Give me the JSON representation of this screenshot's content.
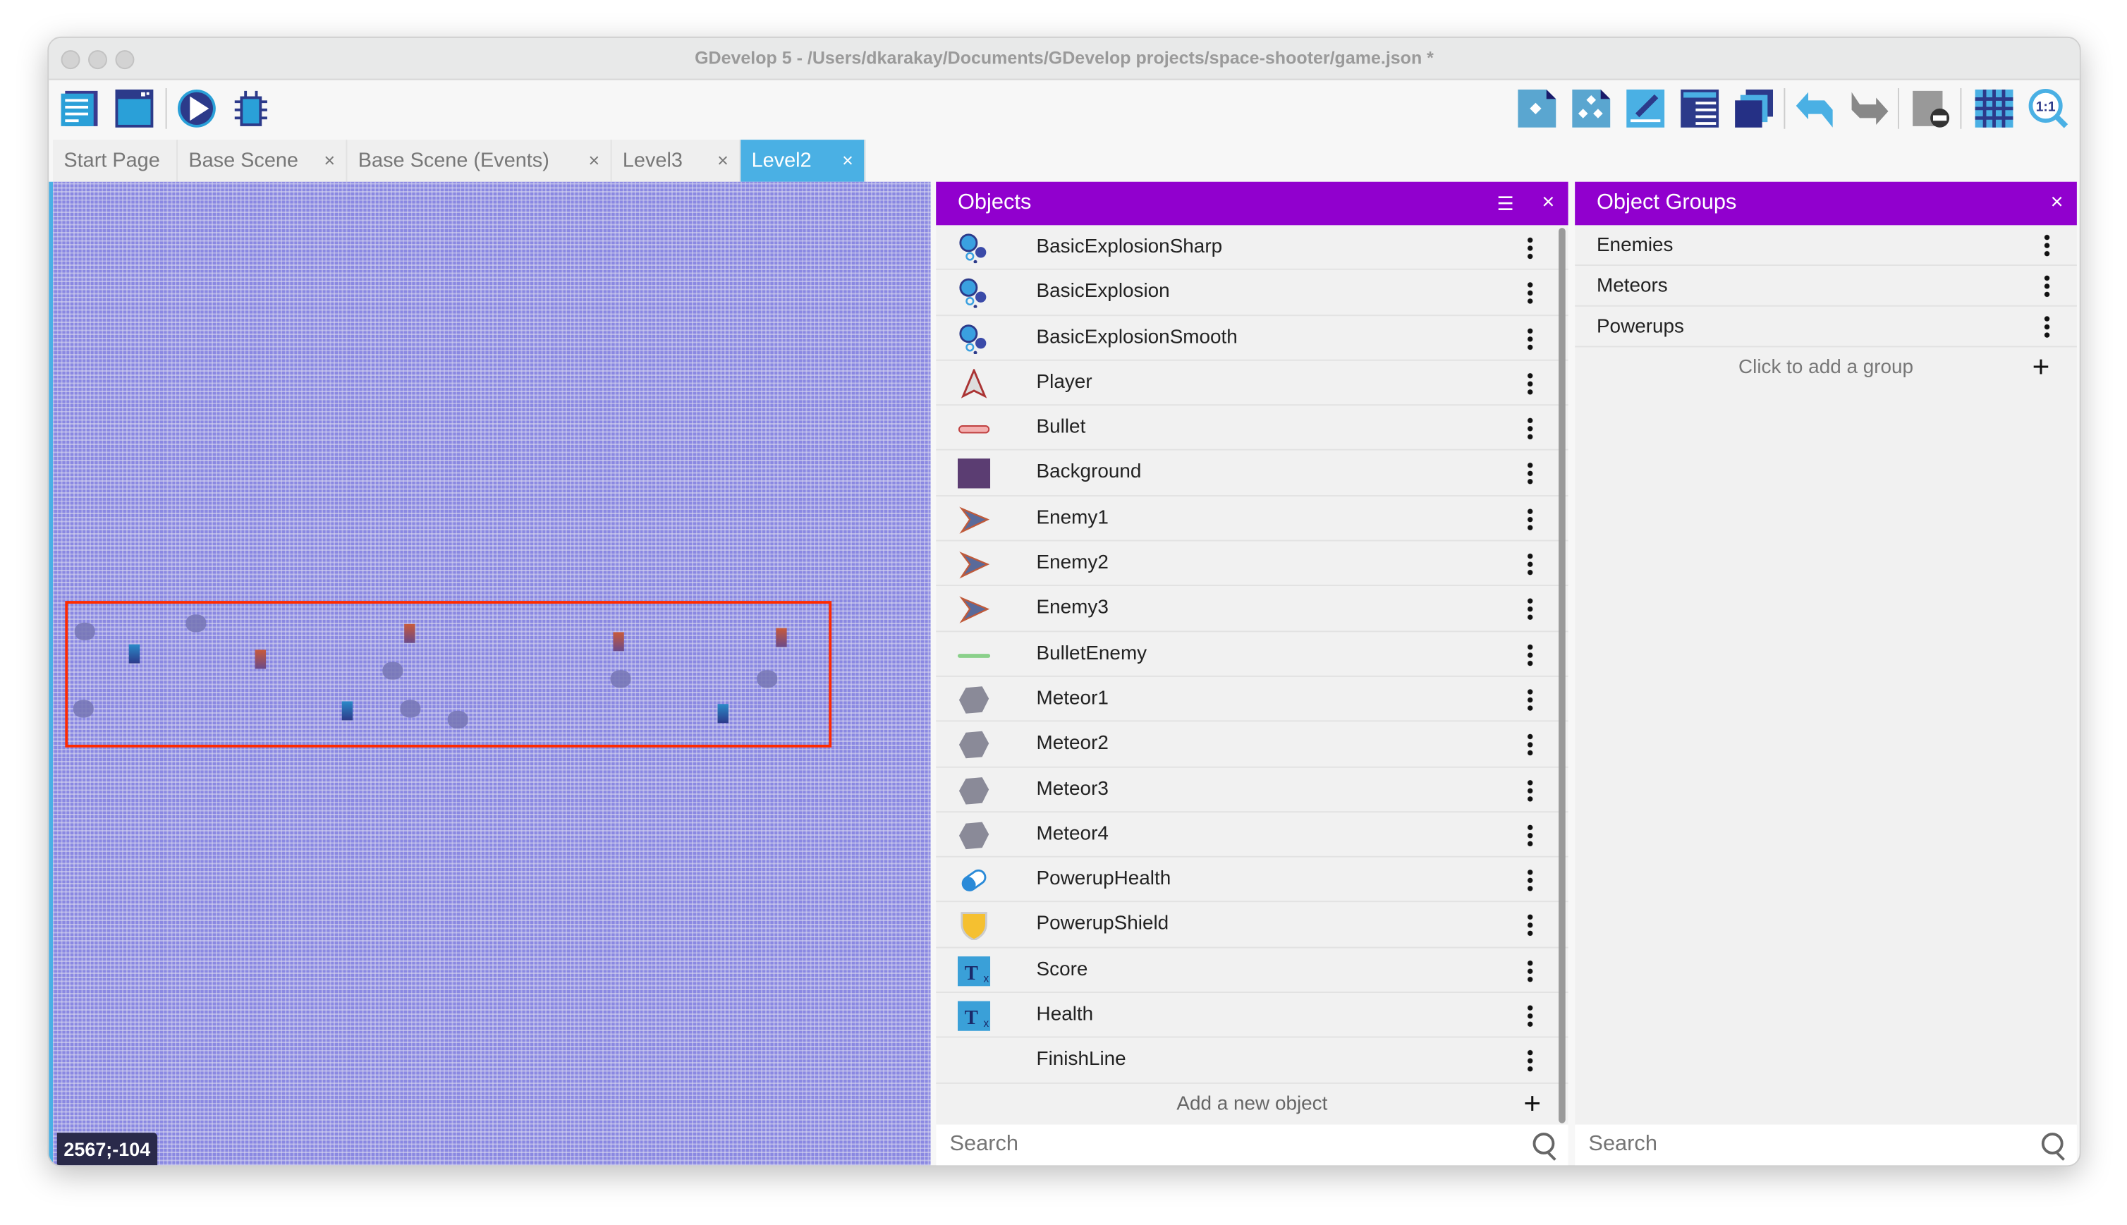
{
  "window": {
    "title": "GDevelop 5 - /Users/dkarakay/Documents/GDevelop projects/space-shooter/game.json *"
  },
  "toolbar": {
    "left": [
      "project-manager-icon",
      "scene-window-icon",
      "preview-play-icon",
      "debugger-icon"
    ],
    "right": [
      "add-instance-icon",
      "instances-list-icon",
      "properties-edit-icon",
      "layers-list-icon",
      "layers-stack-icon",
      "undo-icon",
      "redo-icon",
      "delete-icon",
      "grid-icon",
      "zoom-reset-icon"
    ]
  },
  "tabs": [
    {
      "label": "Start Page",
      "closable": false
    },
    {
      "label": "Base Scene",
      "closable": true
    },
    {
      "label": "Base Scene (Events)",
      "closable": true
    },
    {
      "label": "Level3",
      "closable": true
    },
    {
      "label": "Level2",
      "closable": true,
      "active": true
    }
  ],
  "tab_close": "×",
  "canvas": {
    "coords": "2567;-104",
    "background": "#8a88e2",
    "selection_color": "#ff2a00"
  },
  "objects": {
    "title": "Objects",
    "close": "×",
    "items": [
      {
        "name": "BasicExplosionSharp",
        "icon": "particle"
      },
      {
        "name": "BasicExplosion",
        "icon": "particle"
      },
      {
        "name": "BasicExplosionSmooth",
        "icon": "particle"
      },
      {
        "name": "Player",
        "icon": "ship"
      },
      {
        "name": "Bullet",
        "icon": "bullet"
      },
      {
        "name": "Background",
        "icon": "square"
      },
      {
        "name": "Enemy1",
        "icon": "enemy"
      },
      {
        "name": "Enemy2",
        "icon": "enemy"
      },
      {
        "name": "Enemy3",
        "icon": "enemy"
      },
      {
        "name": "BulletEnemy",
        "icon": "laser"
      },
      {
        "name": "Meteor1",
        "icon": "meteor"
      },
      {
        "name": "Meteor2",
        "icon": "meteor"
      },
      {
        "name": "Meteor3",
        "icon": "meteor"
      },
      {
        "name": "Meteor4",
        "icon": "meteor"
      },
      {
        "name": "PowerupHealth",
        "icon": "pill"
      },
      {
        "name": "PowerupShield",
        "icon": "shield"
      },
      {
        "name": "Score",
        "icon": "text"
      },
      {
        "name": "Health",
        "icon": "text"
      },
      {
        "name": "FinishLine",
        "icon": "none"
      }
    ],
    "add_label": "Add a new object",
    "add_icon": "+",
    "search_placeholder": "Search"
  },
  "groups": {
    "title": "Object Groups",
    "close": "×",
    "items": [
      "Enemies",
      "Meteors",
      "Powerups"
    ],
    "add_label": "Click to add a group",
    "add_icon": "+",
    "search_placeholder": "Search"
  },
  "colors": {
    "accent": "#9100ce",
    "tab_active": "#4ab0e4"
  }
}
